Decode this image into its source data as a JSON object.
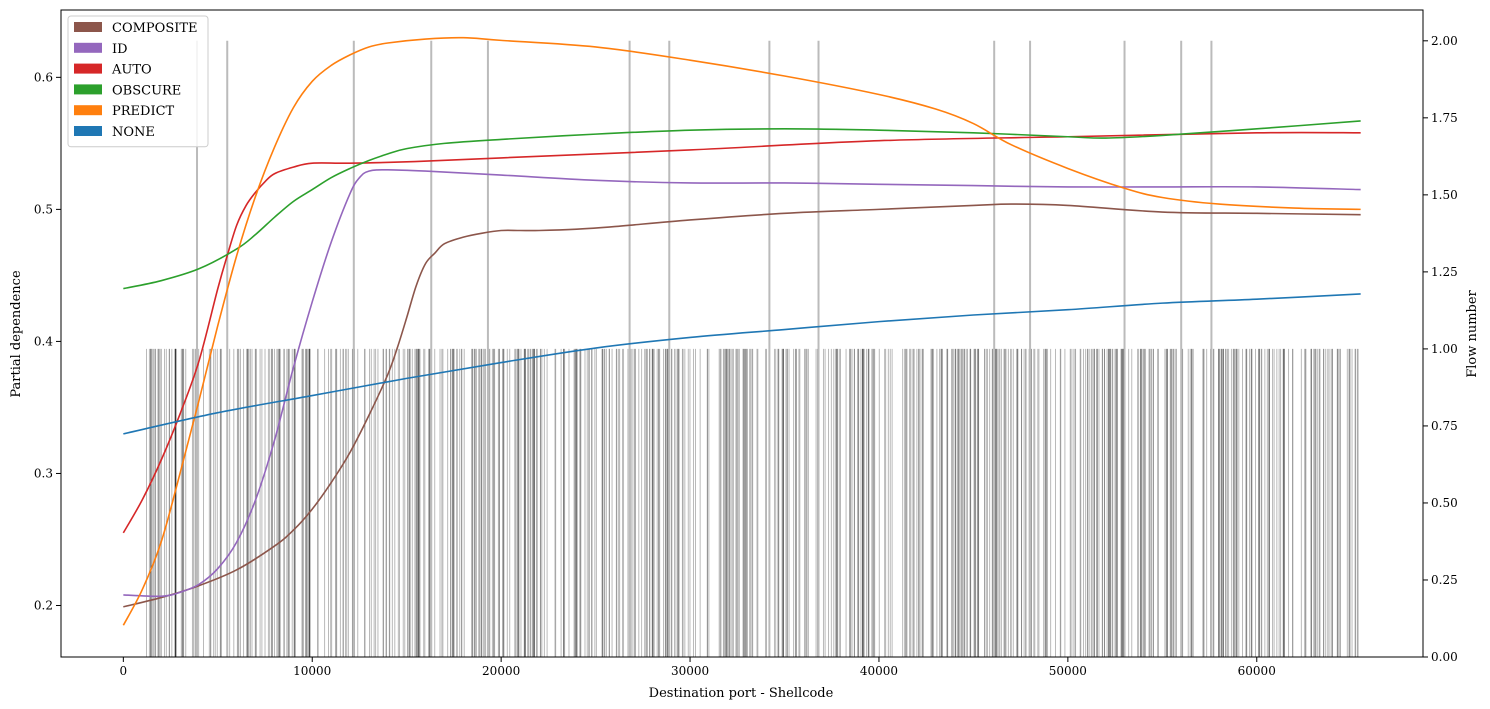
{
  "chart_data": {
    "type": "line",
    "xlabel": "Destination port - Shellcode",
    "ylabel": "Partial dependence",
    "y2label": "Flow number",
    "xlim": [
      -3300,
      68800
    ],
    "ylim": [
      0.161,
      0.651
    ],
    "y2lim": [
      0.0,
      2.1
    ],
    "xticks": [
      0,
      10000,
      20000,
      30000,
      40000,
      50000,
      60000
    ],
    "yticks": [
      0.2,
      0.3,
      0.4,
      0.5,
      0.6
    ],
    "y2ticks": [
      0.0,
      0.25,
      0.5,
      0.75,
      1.0,
      1.25,
      1.5,
      1.75,
      2.0
    ],
    "xtick_labels": [
      "0",
      "10000",
      "20000",
      "30000",
      "40000",
      "50000",
      "60000"
    ],
    "ytick_labels": [
      "0.2",
      "0.3",
      "0.4",
      "0.5",
      "0.6"
    ],
    "y2tick_labels": [
      "0.00",
      "0.25",
      "0.50",
      "0.75",
      "1.00",
      "1.25",
      "1.50",
      "1.75",
      "2.00"
    ],
    "grid": false,
    "legend_position": "top-left",
    "legend": [
      {
        "label": "COMPOSITE",
        "color": "#8c564b"
      },
      {
        "label": "ID",
        "color": "#9467bd"
      },
      {
        "label": "AUTO",
        "color": "#d62728"
      },
      {
        "label": "OBSCURE",
        "color": "#2ca02c"
      },
      {
        "label": "PREDICT",
        "color": "#ff7f0e"
      },
      {
        "label": "NONE",
        "color": "#1f77b4"
      }
    ],
    "series": [
      {
        "name": "COMPOSITE",
        "color": "#8c564b",
        "x": [
          0,
          2000,
          4000,
          6000,
          8000,
          9000,
          10000,
          11000,
          12000,
          13000,
          14000,
          14500,
          15000,
          15500,
          16000,
          16500,
          17000,
          18000,
          19000,
          20000,
          21000,
          22000,
          24000,
          26000,
          30000,
          35000,
          40000,
          45000,
          47000,
          50000,
          55000,
          60000,
          65500
        ],
        "y": [
          0.199,
          0.206,
          0.215,
          0.227,
          0.245,
          0.257,
          0.273,
          0.293,
          0.316,
          0.344,
          0.375,
          0.395,
          0.418,
          0.442,
          0.459,
          0.467,
          0.474,
          0.479,
          0.482,
          0.484,
          0.484,
          0.484,
          0.485,
          0.487,
          0.492,
          0.497,
          0.5,
          0.503,
          0.504,
          0.503,
          0.498,
          0.497,
          0.496
        ]
      },
      {
        "name": "ID",
        "color": "#9467bd",
        "x": [
          0,
          2000,
          3000,
          4000,
          5000,
          6000,
          7000,
          8000,
          9000,
          10000,
          11000,
          12000,
          12500,
          13000,
          14000,
          16000,
          20000,
          25000,
          30000,
          35000,
          40000,
          45000,
          50000,
          55000,
          60000,
          65500
        ],
        "y": [
          0.208,
          0.207,
          0.21,
          0.216,
          0.228,
          0.248,
          0.28,
          0.325,
          0.38,
          0.43,
          0.475,
          0.512,
          0.524,
          0.529,
          0.53,
          0.529,
          0.526,
          0.522,
          0.52,
          0.52,
          0.519,
          0.518,
          0.517,
          0.517,
          0.517,
          0.515
        ]
      },
      {
        "name": "AUTO",
        "color": "#d62728",
        "x": [
          0,
          1000,
          2000,
          3000,
          4000,
          5000,
          5500,
          6000,
          6500,
          7000,
          7500,
          8000,
          9000,
          10000,
          12000,
          15000,
          20000,
          30000,
          40000,
          50000,
          60000,
          65500
        ],
        "y": [
          0.255,
          0.28,
          0.31,
          0.345,
          0.385,
          0.44,
          0.465,
          0.488,
          0.503,
          0.513,
          0.521,
          0.527,
          0.532,
          0.535,
          0.535,
          0.536,
          0.539,
          0.545,
          0.552,
          0.555,
          0.558,
          0.558
        ]
      },
      {
        "name": "OBSCURE",
        "color": "#2ca02c",
        "x": [
          0,
          2000,
          4000,
          6000,
          7000,
          8000,
          9000,
          10000,
          11000,
          12000,
          13000,
          14000,
          15000,
          17000,
          20000,
          25000,
          30000,
          35000,
          40000,
          45000,
          50000,
          52000,
          55000,
          60000,
          65500
        ],
        "y": [
          0.44,
          0.446,
          0.455,
          0.47,
          0.481,
          0.494,
          0.506,
          0.515,
          0.524,
          0.531,
          0.537,
          0.542,
          0.546,
          0.55,
          0.553,
          0.557,
          0.56,
          0.561,
          0.56,
          0.558,
          0.555,
          0.554,
          0.556,
          0.561,
          0.567
        ]
      },
      {
        "name": "PREDICT",
        "color": "#ff7f0e",
        "x": [
          0,
          1000,
          2000,
          3000,
          4000,
          5000,
          6000,
          7000,
          8000,
          9000,
          10000,
          11000,
          12000,
          13000,
          14000,
          16000,
          18000,
          20000,
          25000,
          30000,
          35000,
          40000,
          43000,
          45000,
          47000,
          50000,
          53000,
          55000,
          58000,
          62000,
          65500
        ],
        "y": [
          0.185,
          0.212,
          0.248,
          0.3,
          0.355,
          0.412,
          0.465,
          0.51,
          0.547,
          0.577,
          0.597,
          0.609,
          0.617,
          0.623,
          0.626,
          0.629,
          0.63,
          0.628,
          0.623,
          0.613,
          0.601,
          0.587,
          0.576,
          0.565,
          0.549,
          0.531,
          0.516,
          0.509,
          0.504,
          0.501,
          0.5
        ]
      },
      {
        "name": "NONE",
        "color": "#1f77b4",
        "x": [
          0,
          5000,
          10000,
          15000,
          20000,
          25000,
          30000,
          35000,
          40000,
          45000,
          50000,
          55000,
          60000,
          65500
        ],
        "y": [
          0.33,
          0.346,
          0.359,
          0.372,
          0.384,
          0.395,
          0.403,
          0.409,
          0.415,
          0.42,
          0.424,
          0.429,
          0.432,
          0.436
        ]
      }
    ],
    "rug": {
      "x_range": [
        1100,
        65500
      ],
      "gap": [
        31000,
        31500
      ],
      "flow_value": 1.0,
      "count": 760,
      "color": "#000000"
    },
    "vlines": {
      "x": [
        3900,
        5500,
        12200,
        16300,
        19300,
        26800,
        28900,
        34200,
        36800,
        46100,
        48000,
        53000,
        56000,
        57600
      ],
      "color": "#bbbbbb"
    }
  }
}
